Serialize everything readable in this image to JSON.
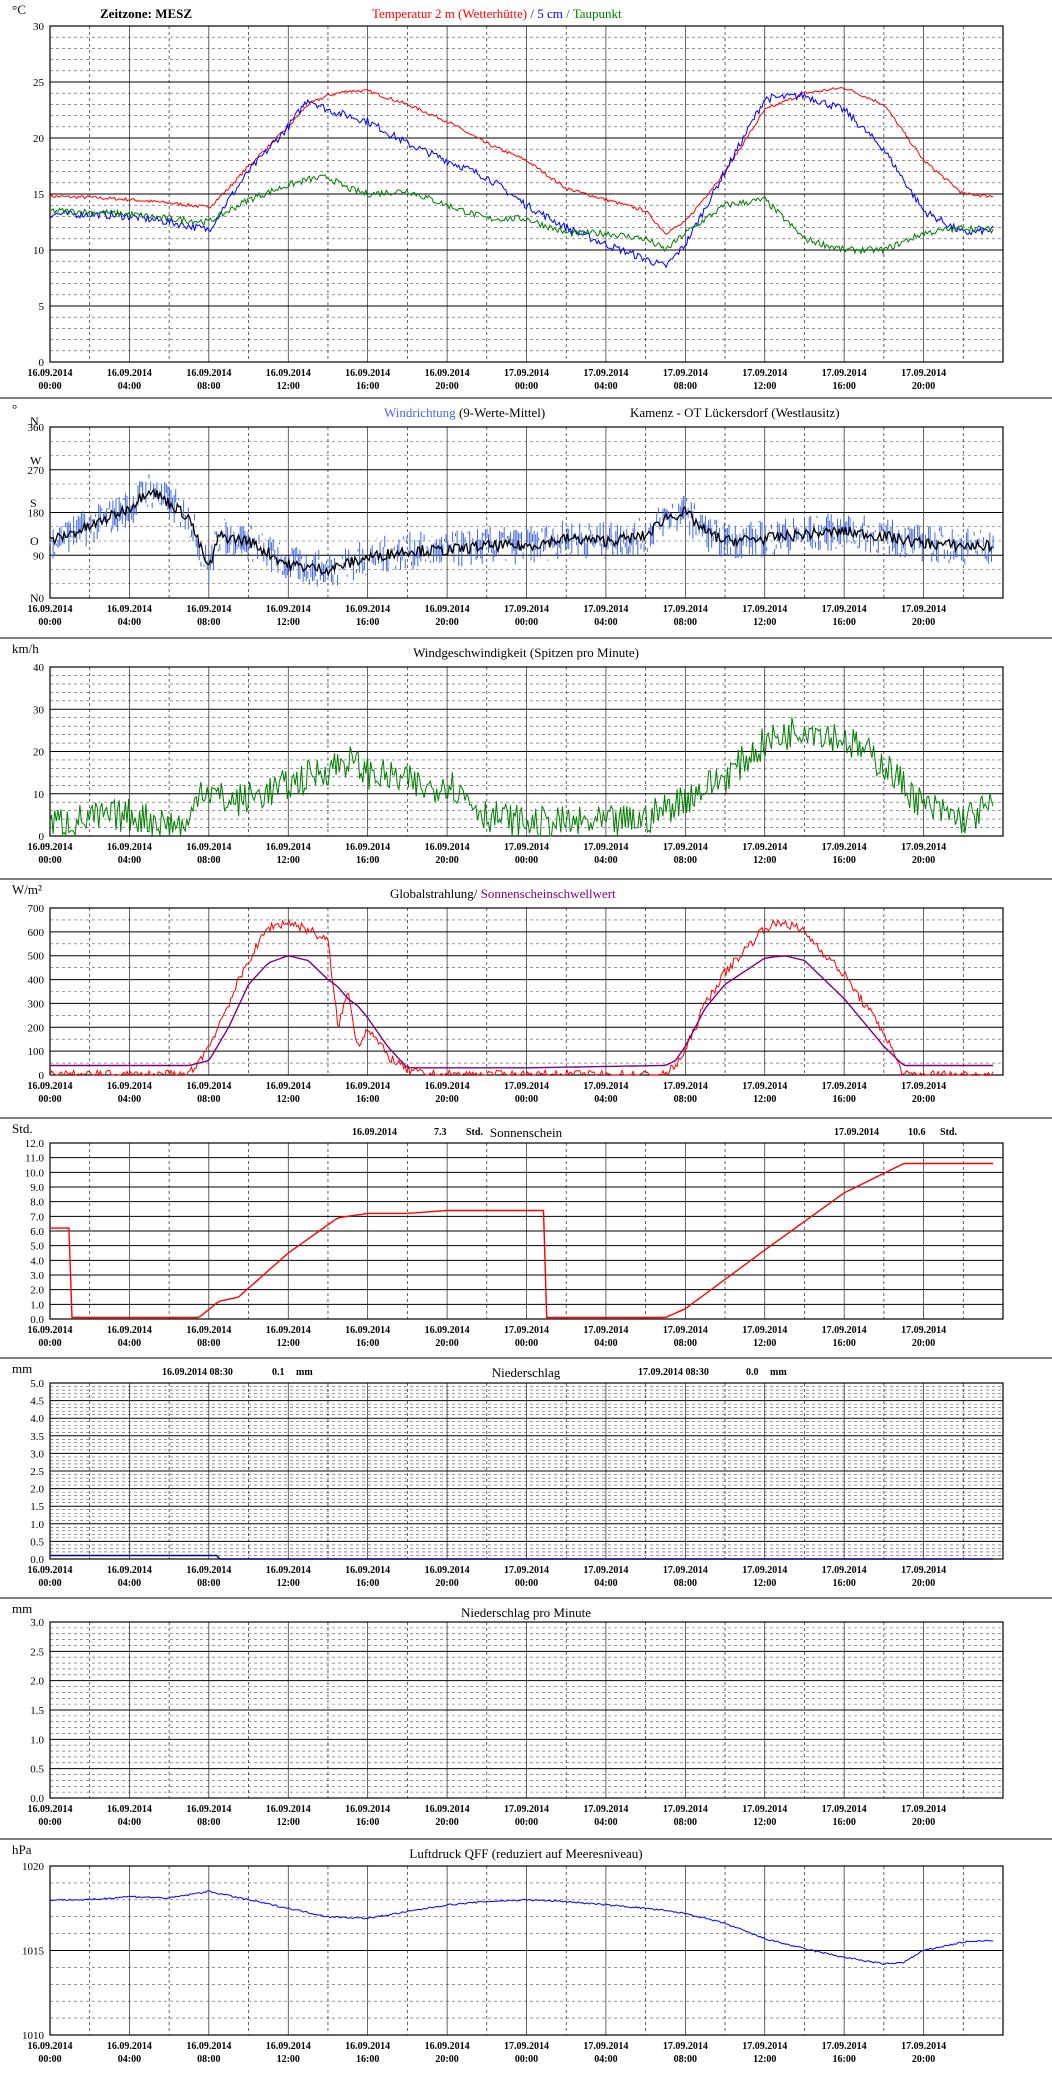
{
  "page": {
    "timezone_label": "Zeitzone: MESZ"
  },
  "x_tick_labels": [
    {
      "date": "16.09.2014",
      "time": "00:00"
    },
    {
      "date": "16.09.2014",
      "time": "04:00"
    },
    {
      "date": "16.09.2014",
      "time": "08:00"
    },
    {
      "date": "16.09.2014",
      "time": "12:00"
    },
    {
      "date": "16.09.2014",
      "time": "16:00"
    },
    {
      "date": "16.09.2014",
      "time": "20:00"
    },
    {
      "date": "17.09.2014",
      "time": "00:00"
    },
    {
      "date": "17.09.2014",
      "time": "04:00"
    },
    {
      "date": "17.09.2014",
      "time": "08:00"
    },
    {
      "date": "17.09.2014",
      "time": "12:00"
    },
    {
      "date": "17.09.2014",
      "time": "16:00"
    },
    {
      "date": "17.09.2014",
      "time": "20:00"
    }
  ],
  "chart_data": [
    {
      "type": "line",
      "unit": "°C",
      "title_parts": [
        {
          "text": "Temperatur 2 m (Wetterhütte)",
          "color": "#ff0000"
        },
        {
          "text": " / ",
          "color": "#0000ff"
        },
        {
          "text": "5 cm",
          "color": "#0000ff"
        },
        {
          "text": " / ",
          "color": "#008000"
        },
        {
          "text": "Taupunkt",
          "color": "#008000"
        }
      ],
      "ylim": [
        0,
        30
      ],
      "y_ticks": [
        0,
        5,
        10,
        15,
        20,
        25,
        30
      ],
      "y_tick_labels": [
        "0",
        "5",
        "10",
        "15",
        "20",
        "25",
        "30"
      ],
      "x_hours": [
        0,
        2,
        4,
        6,
        8,
        9,
        10,
        12,
        13,
        14,
        15,
        16,
        18,
        20,
        22,
        24,
        26,
        28,
        30,
        31,
        32,
        34,
        36,
        38,
        40,
        42,
        44,
        46,
        47.5
      ],
      "series": [
        {
          "name": "Temperatur 2 m (Wetterhütte)",
          "color": "#ff0000",
          "noise": 0.15,
          "values": [
            14.8,
            14.7,
            14.5,
            14.2,
            13.8,
            15.5,
            17.5,
            21,
            23,
            23.8,
            24.2,
            24.2,
            23,
            21.5,
            19.5,
            18,
            15.5,
            14.5,
            13.5,
            11.5,
            12.5,
            17,
            22.5,
            24,
            24.5,
            23,
            18,
            15,
            14.8
          ]
        },
        {
          "name": "5 cm",
          "color": "#0000ff",
          "noise": 0.35,
          "values": [
            13.2,
            13.2,
            13,
            12.5,
            11.8,
            14.5,
            17,
            21,
            23.5,
            22.5,
            22,
            21.5,
            19.5,
            18,
            16.5,
            14,
            12,
            10.5,
            9.2,
            8.5,
            10.5,
            17,
            23.5,
            23.8,
            22.5,
            19,
            13.5,
            11.5,
            11.8
          ]
        },
        {
          "name": "Taupunkt",
          "color": "#008000",
          "noise": 0.3,
          "values": [
            13.5,
            13.4,
            13.2,
            12.8,
            12.5,
            13.5,
            14.5,
            15.8,
            16.3,
            16.5,
            15.5,
            15,
            15.3,
            14,
            12.8,
            12.8,
            11.5,
            11.5,
            11,
            10,
            11.5,
            14,
            14.5,
            11,
            10,
            10,
            11.5,
            12,
            11.8
          ]
        }
      ]
    },
    {
      "type": "scatter",
      "unit": "°",
      "title_parts": [
        {
          "text": "Windrichtung",
          "color": "#4169e1"
        },
        {
          "text": " (9-Werte-Mittel)",
          "color": "#000000"
        },
        {
          "text": "Kamenz - OT Lückersdorf (Westlausitz)",
          "color": "#000000"
        }
      ],
      "ylim": [
        0,
        360
      ],
      "y_ticks": [
        0,
        90,
        180,
        270,
        360
      ],
      "y_tick_labels": [
        "0",
        "90",
        "180",
        "270",
        "360"
      ],
      "direction_labels": [
        {
          "text": "N",
          "value": 0
        },
        {
          "text": "O",
          "value": 120
        },
        {
          "text": "S",
          "value": 200
        },
        {
          "text": "W",
          "value": 290
        },
        {
          "text": "N",
          "value": 390
        }
      ],
      "x_hours": [
        0,
        2,
        4,
        5,
        6,
        7,
        8,
        8.5,
        10,
        12,
        14,
        16,
        18,
        20,
        22,
        24,
        26,
        28,
        30,
        31,
        32,
        33,
        34,
        36,
        38,
        40,
        42,
        44,
        46,
        47.5
      ],
      "series": [
        {
          "name": "Windrichtung",
          "color": "#4169e1",
          "noise": 40,
          "values": [
            120,
            150,
            190,
            230,
            200,
            170,
            60,
            130,
            120,
            70,
            60,
            85,
            100,
            100,
            110,
            110,
            125,
            120,
            130,
            170,
            180,
            140,
            120,
            125,
            135,
            140,
            130,
            115,
            110,
            110
          ]
        },
        {
          "name": "9-Werte-Mittel",
          "color": "#000000",
          "noise": 12,
          "values": [
            120,
            150,
            190,
            230,
            200,
            170,
            60,
            130,
            120,
            70,
            60,
            85,
            100,
            100,
            110,
            110,
            125,
            120,
            130,
            170,
            180,
            140,
            120,
            125,
            135,
            140,
            130,
            115,
            110,
            110
          ]
        }
      ]
    },
    {
      "type": "line",
      "unit": "km/h",
      "title": "Windgeschwindigkeit (Spitzen pro Minute)",
      "ylim": [
        0,
        40
      ],
      "y_ticks": [
        0,
        10,
        20,
        30,
        40
      ],
      "y_tick_labels": [
        "0",
        "10",
        "20",
        "30",
        "40"
      ],
      "x_hours": [
        0,
        2,
        4,
        6,
        7,
        7.5,
        9,
        10,
        12,
        14,
        15,
        16,
        18,
        19,
        20,
        22,
        24,
        26,
        28,
        30,
        32,
        34,
        36,
        38,
        40,
        42,
        44,
        46,
        47.5
      ],
      "series": [
        {
          "name": "Windgeschwindigkeit",
          "color": "#008000",
          "noise": 4,
          "values": [
            3,
            4,
            5,
            3,
            2,
            12,
            8,
            9,
            12,
            16,
            18,
            15,
            13,
            11,
            13,
            5,
            3,
            3,
            3,
            4,
            9,
            14,
            22,
            26,
            23,
            17,
            7,
            4,
            7
          ]
        }
      ]
    },
    {
      "type": "line",
      "unit": "W/m²",
      "title_parts": [
        {
          "text": "Globalstrahlung/",
          "color": "#000000"
        },
        {
          "text": " Sonnenscheinschwellwert",
          "color": "#800080"
        }
      ],
      "ylim": [
        0,
        700
      ],
      "y_ticks": [
        0,
        100,
        200,
        300,
        400,
        500,
        600,
        700
      ],
      "y_tick_labels": [
        "0",
        "100",
        "200",
        "300",
        "400",
        "500",
        "600",
        "700"
      ],
      "x_hours": [
        0,
        7,
        8,
        9,
        10,
        11,
        12,
        13,
        14,
        14.5,
        15,
        15.5,
        16,
        17,
        18,
        19,
        24,
        31,
        31.5,
        32,
        33,
        34,
        36,
        37,
        38,
        40,
        42,
        43,
        47.5
      ],
      "series": [
        {
          "name": "Globalstrahlung",
          "color": "#ff0000",
          "noise": 20,
          "values": [
            0,
            0,
            120,
            300,
            480,
            620,
            640,
            610,
            560,
            200,
            350,
            120,
            200,
            80,
            20,
            0,
            0,
            0,
            40,
            100,
            300,
            430,
            620,
            640,
            600,
            420,
            180,
            0,
            0
          ]
        },
        {
          "name": "Sonnenscheinschwellwert",
          "color": "#800080",
          "noise": 0,
          "values": [
            40,
            40,
            60,
            200,
            380,
            470,
            500,
            480,
            400,
            370,
            320,
            290,
            240,
            120,
            30,
            30,
            30,
            40,
            60,
            120,
            280,
            380,
            490,
            500,
            480,
            320,
            120,
            40,
            40
          ]
        }
      ]
    },
    {
      "type": "line",
      "unit": "Std.",
      "title": "Sonnenschein",
      "summary": [
        {
          "date": "16.09.2014",
          "value": "7.3",
          "unit": "Std."
        },
        {
          "date": "17.09.2014",
          "value": "10.6",
          "unit": "Std."
        }
      ],
      "ylim": [
        0,
        12
      ],
      "y_ticks": [
        0,
        1,
        2,
        3,
        4,
        5,
        6,
        7,
        8,
        9,
        10,
        11,
        12
      ],
      "y_tick_labels": [
        "0.0",
        "1.0",
        "2.0",
        "3.0",
        "4.0",
        "5.0",
        "6.0",
        "7.0",
        "8.0",
        "9.0",
        "10.0",
        "11.0",
        "12.0"
      ],
      "x_hours": [
        0,
        1,
        1.01,
        7.5,
        8.5,
        9.5,
        12,
        14.5,
        16,
        18,
        20,
        24.9,
        24.91,
        31,
        32,
        36,
        40,
        43,
        47.5
      ],
      "series": [
        {
          "name": "Sonnenschein",
          "color": "#ff0000",
          "noise": 0,
          "values": [
            6.2,
            6.2,
            0.1,
            0.1,
            1.2,
            1.5,
            4.5,
            6.9,
            7.2,
            7.2,
            7.4,
            7.4,
            0.1,
            0.1,
            0.7,
            4.7,
            8.6,
            10.6,
            10.6
          ]
        }
      ]
    },
    {
      "type": "line",
      "unit": "mm",
      "title": "Niederschlag",
      "summary": [
        {
          "date": "16.09.2014 08:30",
          "value": "0.1",
          "unit": "mm"
        },
        {
          "date": "17.09.2014 08:30",
          "value": "0.0",
          "unit": "mm"
        }
      ],
      "ylim": [
        0,
        5
      ],
      "y_ticks": [
        0,
        0.5,
        1,
        1.5,
        2,
        2.5,
        3,
        3.5,
        4,
        4.5,
        5
      ],
      "y_tick_labels": [
        "0.0",
        "0.5",
        "1.0",
        "1.5",
        "2.0",
        "2.5",
        "3.0",
        "3.5",
        "4.0",
        "4.5",
        "5.0"
      ],
      "x_hours": [
        0,
        8.5,
        8.51,
        47.5
      ],
      "series": [
        {
          "name": "Niederschlag",
          "color": "#00008b",
          "noise": 0,
          "values": [
            0.1,
            0.1,
            0.0,
            0.0
          ]
        }
      ]
    },
    {
      "type": "line",
      "unit": "mm",
      "title": "Niederschlag pro Minute",
      "ylim": [
        0,
        3
      ],
      "y_ticks": [
        0,
        0.5,
        1,
        1.5,
        2,
        2.5,
        3
      ],
      "y_tick_labels": [
        "0.0",
        "0.5",
        "1.0",
        "1.5",
        "2.0",
        "2.5",
        "3.0"
      ],
      "x_hours": [
        0,
        47.5
      ],
      "series": []
    },
    {
      "type": "line",
      "unit": "hPa",
      "title": "Luftdruck QFF (reduziert auf Meeresniveau)",
      "ylim": [
        1010,
        1020
      ],
      "y_ticks": [
        1010,
        1015,
        1020
      ],
      "y_tick_labels": [
        "1010",
        "1015",
        "1020"
      ],
      "x_hours": [
        0,
        2,
        4,
        6,
        8,
        10,
        12,
        14,
        16,
        18,
        20,
        22,
        24,
        26,
        28,
        30,
        32,
        34,
        36,
        38,
        40,
        42,
        43,
        44,
        46,
        47.5
      ],
      "series": [
        {
          "name": "Luftdruck QFF",
          "color": "#0000ff",
          "noise": 0.05,
          "values": [
            1018,
            1018,
            1018.2,
            1018.1,
            1018.5,
            1018,
            1017.5,
            1017,
            1016.9,
            1017.3,
            1017.7,
            1017.9,
            1018,
            1017.9,
            1017.7,
            1017.5,
            1017.2,
            1016.6,
            1015.7,
            1015.1,
            1014.6,
            1014.2,
            1014.3,
            1015,
            1015.5,
            1015.6
          ]
        }
      ]
    }
  ]
}
